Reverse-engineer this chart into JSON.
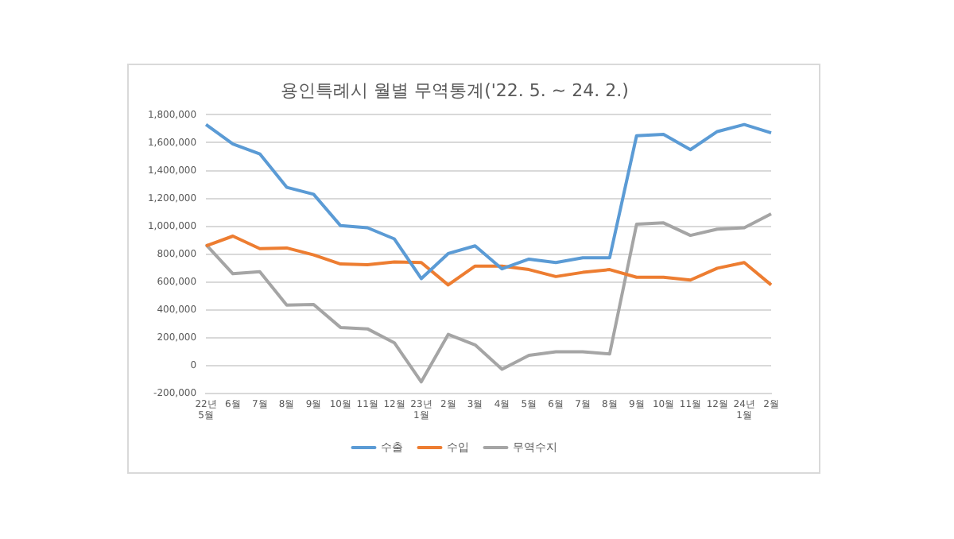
{
  "chart_data": {
    "type": "line",
    "title": "용인특례시 월별 무역통계('22. 5. ~ 24. 2.)",
    "categories": [
      "22년\n5월",
      "6월",
      "7월",
      "8월",
      "9월",
      "10월",
      "11월",
      "12월",
      "23년\n1월",
      "2월",
      "3월",
      "4월",
      "5월",
      "6월",
      "7월",
      "8월",
      "9월",
      "10월",
      "11월",
      "12월",
      "24년\n1월",
      "2월"
    ],
    "series": [
      {
        "name": "수출",
        "color": "#5b9bd5",
        "values": [
          1730000,
          1590000,
          1520000,
          1280000,
          1230000,
          1005000,
          990000,
          910000,
          625000,
          805000,
          860000,
          695000,
          765000,
          740000,
          775000,
          775000,
          1650000,
          1660000,
          1550000,
          1680000,
          1730000,
          1670000
        ]
      },
      {
        "name": "수입",
        "color": "#ed7d31",
        "values": [
          860000,
          930000,
          840000,
          845000,
          795000,
          730000,
          725000,
          745000,
          740000,
          580000,
          715000,
          715000,
          690000,
          640000,
          670000,
          690000,
          635000,
          635000,
          615000,
          700000,
          740000,
          580000
        ]
      },
      {
        "name": "무역수지",
        "color": "#a5a5a5",
        "values": [
          870000,
          660000,
          675000,
          435000,
          440000,
          275000,
          265000,
          165000,
          -115000,
          225000,
          150000,
          -25000,
          75000,
          100000,
          100000,
          85000,
          1015000,
          1025000,
          935000,
          980000,
          990000,
          1090000
        ]
      }
    ],
    "ylim": [
      -200000,
      1800000
    ],
    "yticks": [
      {
        "value": -200000,
        "label": "-200,000"
      },
      0,
      {
        "value": 200000,
        "label": "200,000"
      },
      {
        "value": 400000,
        "label": "400,000"
      },
      {
        "value": 600000,
        "label": "600,000"
      },
      {
        "value": 800000,
        "label": "800,000"
      },
      {
        "value": 1000000,
        "label": "1,000,000"
      },
      {
        "value": 1200000,
        "label": "1,200,000"
      },
      {
        "value": 1400000,
        "label": "1,400,000"
      },
      {
        "value": 1600000,
        "label": "1,600,000"
      },
      {
        "value": 1800000,
        "label": "1,800,000"
      }
    ],
    "grid": "y",
    "legend": "bottom",
    "marker": "none",
    "line_style": "solid"
  }
}
